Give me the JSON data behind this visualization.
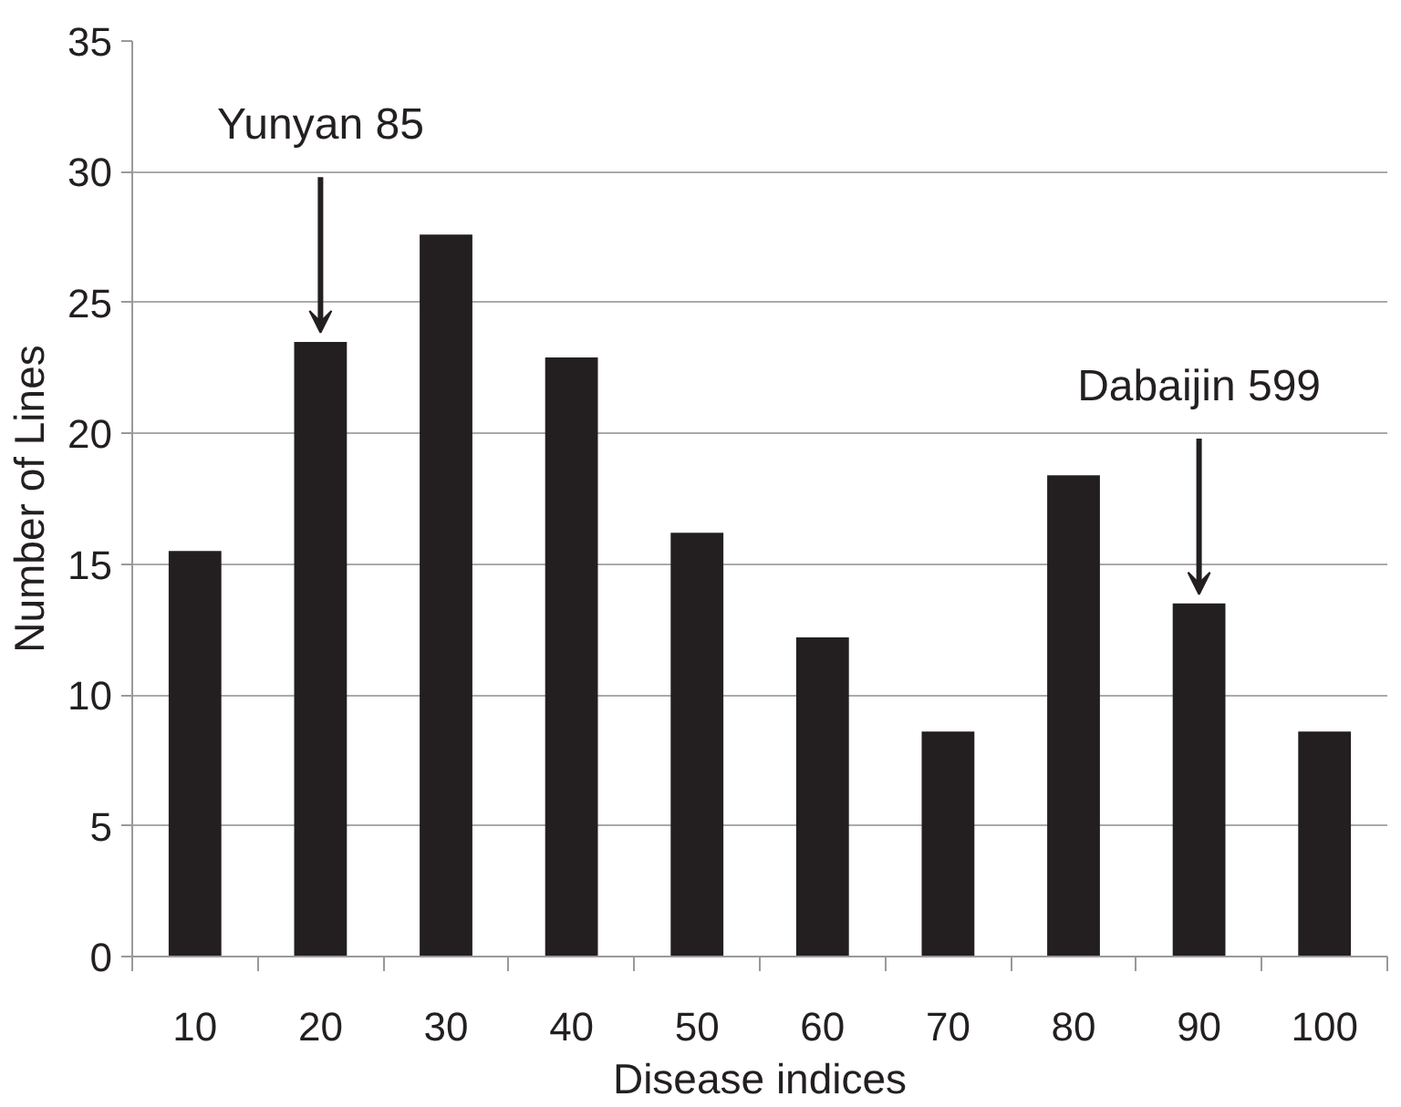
{
  "chart_data": {
    "type": "bar",
    "xlabel": "Disease indices",
    "ylabel": "Number of Lines",
    "categories": [
      "10",
      "20",
      "30",
      "40",
      "50",
      "60",
      "70",
      "80",
      "90",
      "100"
    ],
    "values": [
      15.5,
      23.5,
      27.6,
      22.9,
      16.2,
      12.2,
      8.6,
      18.4,
      13.5,
      8.6
    ],
    "color": "#231f20",
    "ylim": [
      0,
      35
    ],
    "yticks": [
      0,
      5,
      10,
      15,
      20,
      25,
      30,
      35
    ],
    "grid": "y",
    "annotations": [
      {
        "text": "Yunyan 85",
        "x": "20",
        "y": 23.5
      },
      {
        "text": "Dabaijin 599",
        "x": "90",
        "y": 13.5
      }
    ]
  }
}
